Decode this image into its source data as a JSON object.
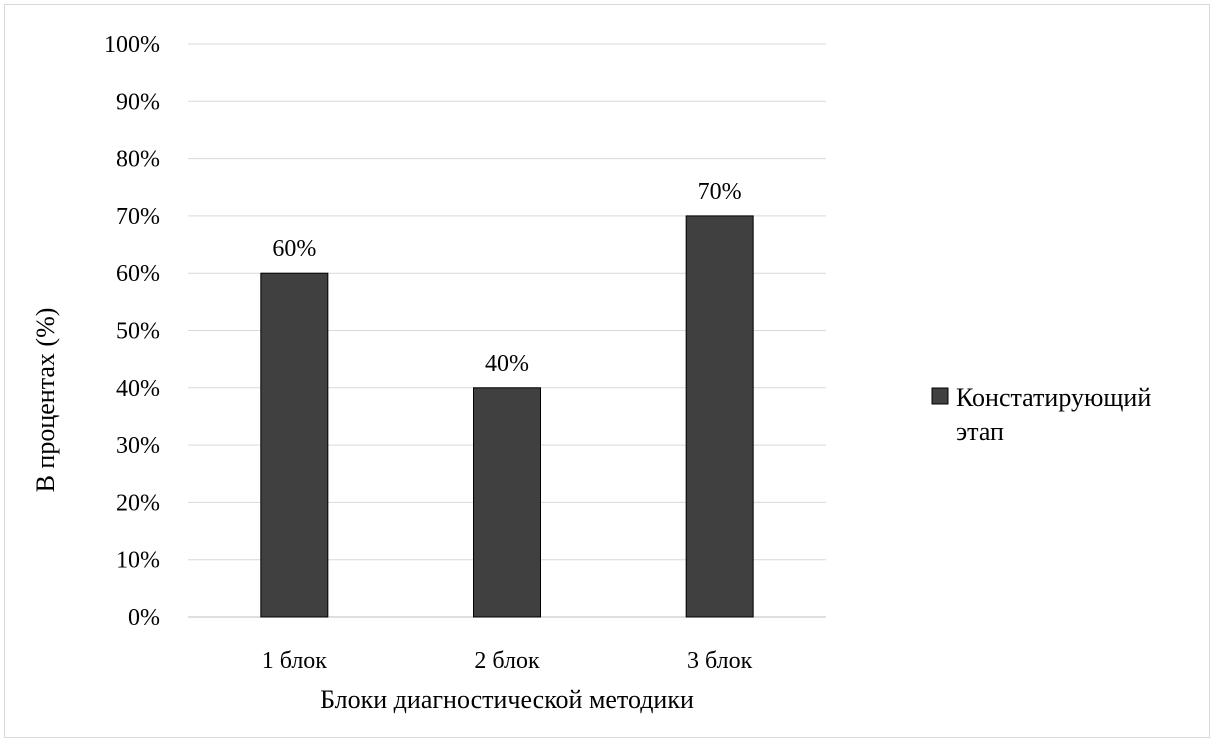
{
  "chart_data": {
    "type": "bar",
    "title": "",
    "categories": [
      "1 блок",
      "2 блок",
      "3 блок"
    ],
    "series": [
      {
        "name": "Констатирующий этап",
        "name_lines": [
          "Констатирующий",
          "этап"
        ],
        "values": [
          60,
          40,
          70
        ],
        "data_labels": [
          "60%",
          "40%",
          "70%"
        ],
        "color": "#404040"
      }
    ],
    "xlabel": "Блоки диагностической методики",
    "ylabel": "В процентах (%)",
    "ylim": [
      0,
      100
    ],
    "yticks": [
      0,
      10,
      20,
      30,
      40,
      50,
      60,
      70,
      80,
      90,
      100
    ],
    "ytick_labels": [
      "0%",
      "10%",
      "20%",
      "30%",
      "40%",
      "50%",
      "60%",
      "70%",
      "80%",
      "90%",
      "100%"
    ],
    "grid": true,
    "gridline_color": "#d9d9d9",
    "legend_position": "right"
  }
}
